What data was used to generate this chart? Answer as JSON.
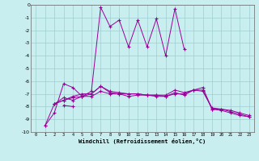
{
  "title": "",
  "xlabel": "Windchill (Refroidissement éolien,°C)",
  "ylabel": "",
  "bg_color": "#c8eef0",
  "grid_color": "#b0d8da",
  "line_color": "#990099",
  "xlim": [
    -0.5,
    23.5
  ],
  "ylim": [
    -10,
    0
  ],
  "xticks": [
    0,
    1,
    2,
    3,
    4,
    5,
    6,
    7,
    8,
    9,
    10,
    11,
    12,
    13,
    14,
    15,
    16,
    17,
    18,
    19,
    20,
    21,
    22,
    23
  ],
  "yticks": [
    0,
    -1,
    -2,
    -3,
    -4,
    -5,
    -6,
    -7,
    -8,
    -9,
    -10
  ],
  "series": [
    [
      1,
      -9.5,
      2,
      -8.5,
      3,
      -6.2,
      4,
      -6.5,
      5,
      -7.2,
      6,
      -6.8,
      7,
      -0.2,
      8,
      -1.7,
      9,
      -1.2,
      10,
      -3.3,
      11,
      -1.2,
      12,
      -3.3,
      13,
      -1.1,
      14,
      -4.0,
      15,
      -0.3,
      16,
      -3.5
    ],
    [
      2,
      -7.8,
      3,
      -7.5,
      4,
      -7.2,
      5,
      -7.0,
      6,
      -7.0,
      7,
      -6.4,
      8,
      -6.9,
      9,
      -7.0,
      10,
      -7.0,
      11,
      -7.0,
      12,
      -7.1,
      13,
      -7.1,
      14,
      -7.1,
      15,
      -6.7,
      16,
      -6.9,
      17,
      -6.7,
      18,
      -6.5,
      19,
      -8.2,
      20,
      -8.3,
      21,
      -8.5,
      22,
      -8.7,
      23,
      -8.8
    ],
    [
      2,
      -7.8,
      3,
      -7.3,
      4,
      -7.5,
      5,
      -7.2,
      6,
      -7.2,
      7,
      -6.8,
      8,
      -7.0,
      9,
      -7.0,
      10,
      -7.2,
      11,
      -7.1,
      12,
      -7.1,
      13,
      -7.2,
      14,
      -7.2,
      15,
      -6.9,
      16,
      -7.1,
      17,
      -6.7,
      18,
      -6.8,
      19,
      -8.1,
      20,
      -8.2,
      21,
      -8.3,
      22,
      -8.5,
      23,
      -8.7
    ],
    [
      3,
      -7.9,
      4,
      -8.0
    ],
    [
      1,
      -9.5,
      2,
      -7.8,
      3,
      -7.5,
      4,
      -7.3,
      5,
      -7.2,
      6,
      -7.0,
      7,
      -6.4,
      8,
      -6.8,
      9,
      -6.9,
      10,
      -7.0,
      11,
      -7.0,
      12,
      -7.1,
      13,
      -7.1,
      14,
      -7.2,
      15,
      -7.0,
      16,
      -7.0,
      17,
      -6.7,
      18,
      -6.7,
      19,
      -8.2,
      20,
      -8.2,
      21,
      -8.4,
      22,
      -8.6,
      23,
      -8.8
    ]
  ]
}
